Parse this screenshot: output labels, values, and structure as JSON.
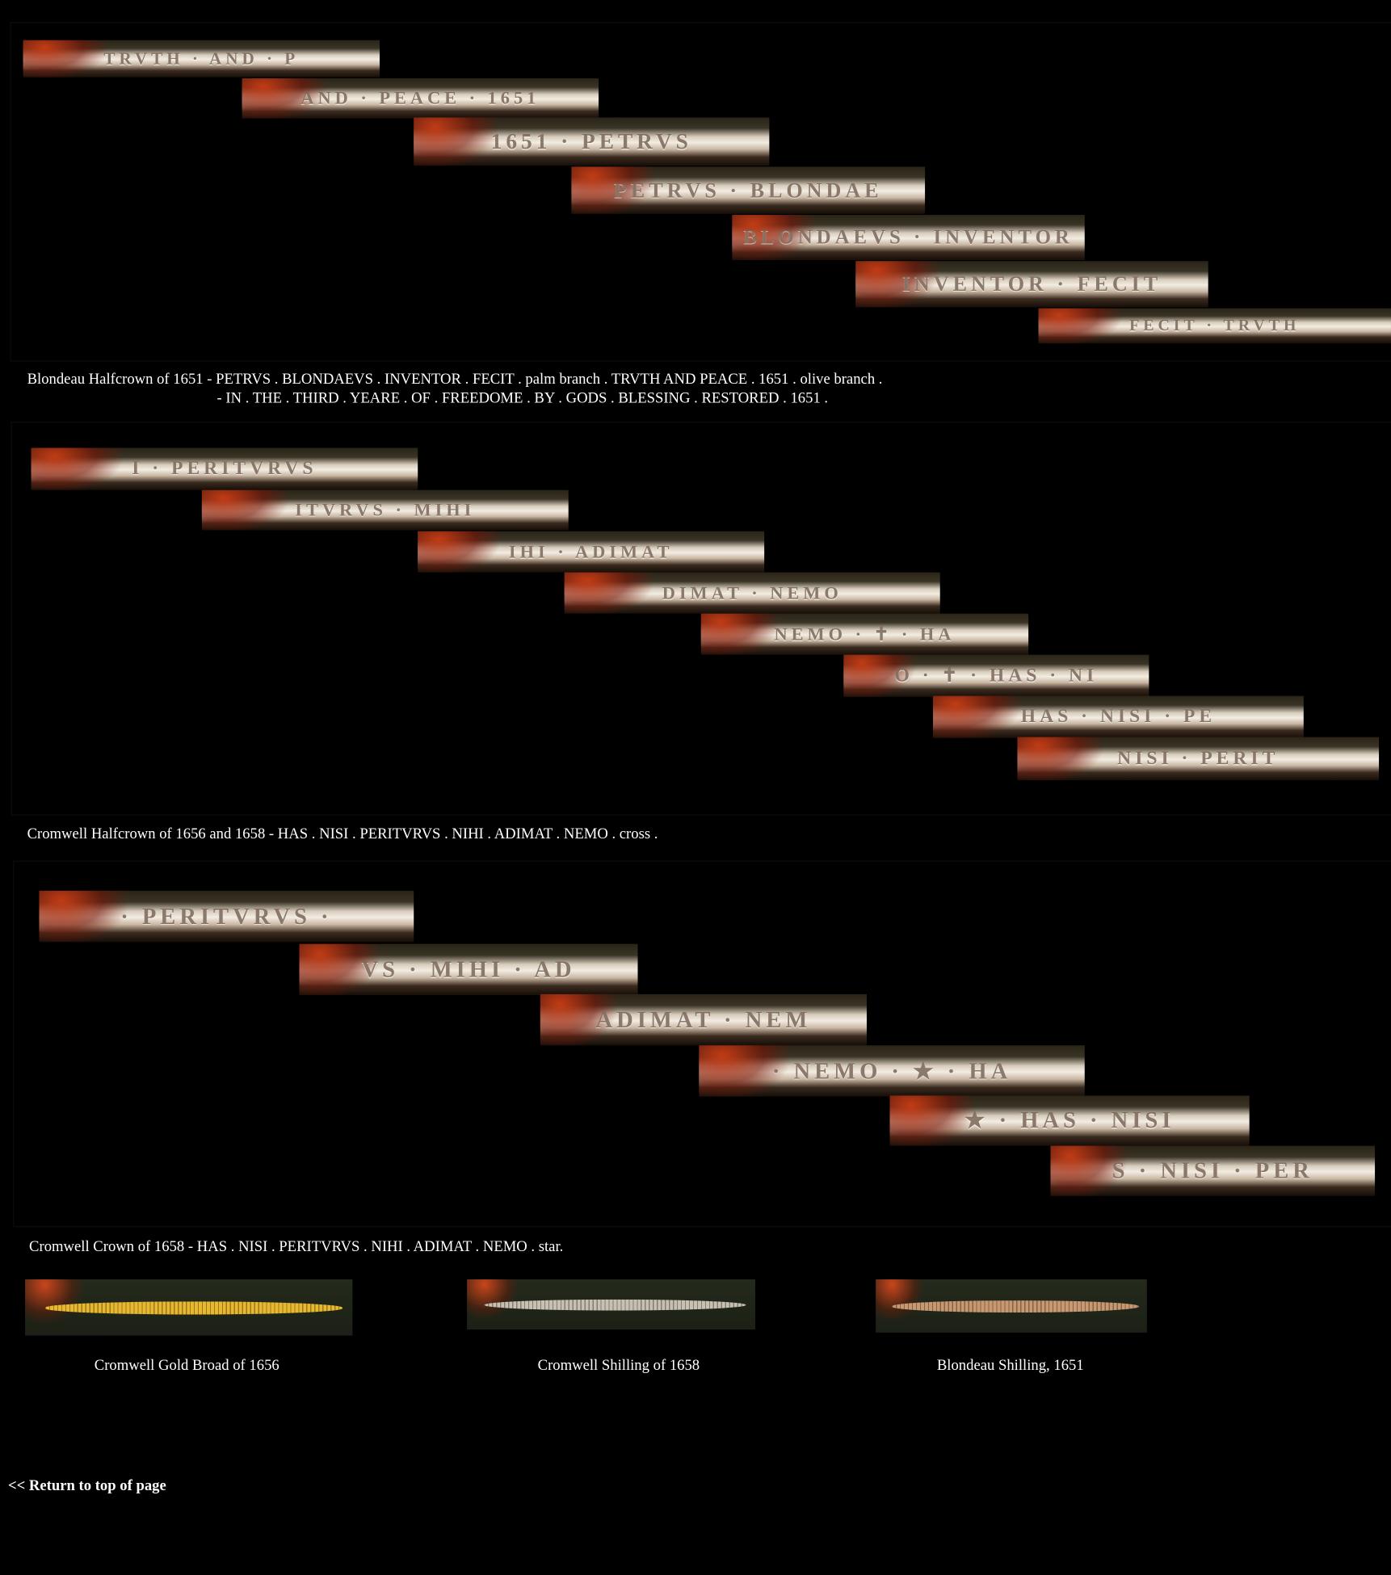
{
  "sections": [
    {
      "caption_lines": [
        "Blondeau Halfcrown of 1651 - PETRVS . BLONDAEVS . INVENTOR . FECIT . palm branch . TRVTH AND PEACE . 1651 . olive branch .",
        "- IN . THE . THIRD . YEARE . OF . FREEDOME . BY . GODS . BLESSING . RESTORED . 1651 ."
      ],
      "strips": [
        "TRVTH · AND · P",
        "AND · PEACE · 1651",
        "1651 · PETRVS",
        "PETRVS · BLONDAE",
        "BLONDAEVS · INVENTOR",
        "INVENTOR · FECIT",
        "FECIT · TRVTH"
      ]
    },
    {
      "caption_lines": [
        "Cromwell Halfcrown of 1656 and 1658 - HAS . NISI . PERITVRVS . NIHI . ADIMAT . NEMO . cross ."
      ],
      "strips": [
        "I · PERITVRVS",
        "ITVRVS · MIHI",
        "IHI · ADIMAT",
        "DIMAT · NEMO",
        "NEMO · ✝ · HA",
        "O · ✝ · HAS · NI",
        "HAS · NISI · PE",
        "NISI · PERIT"
      ]
    },
    {
      "caption_lines": [
        "Cromwell Crown of 1658 - HAS . NISI . PERITVRVS . NIHI . ADIMAT . NEMO . star."
      ],
      "strips": [
        "· PERITVRVS ·",
        "VS · MIHI · AD",
        "ADIMAT · NEM",
        "· NEMO · ★ · HA",
        "★ · HAS · NISI",
        "S · NISI · PER"
      ]
    }
  ],
  "edges": [
    {
      "caption": "Cromwell Gold Broad of 1656",
      "rim_color": "#e8b830"
    },
    {
      "caption": "Cromwell Shilling of 1658",
      "rim_color": "#c8c0b0"
    },
    {
      "caption": "Blondeau Shilling, 1651",
      "rim_color": "#c89870"
    }
  ],
  "return_link": "<< Return to top of page"
}
